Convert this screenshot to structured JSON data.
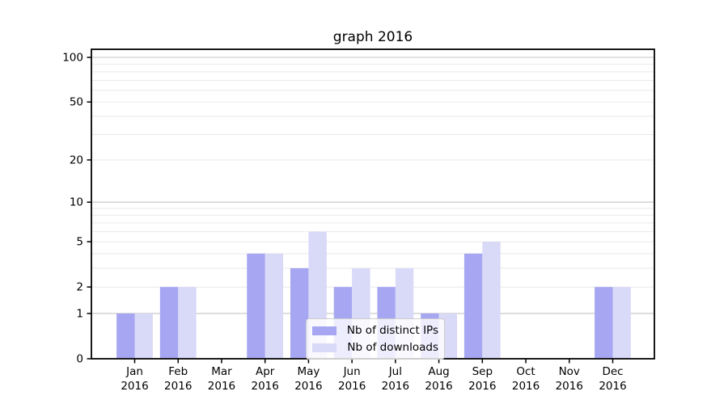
{
  "chart_data": {
    "type": "bar",
    "title": "graph 2016",
    "categories": [
      "Jan",
      "Feb",
      "Mar",
      "Apr",
      "May",
      "Jun",
      "Jul",
      "Aug",
      "Sep",
      "Oct",
      "Nov",
      "Dec"
    ],
    "category_year": "2016",
    "series": [
      {
        "name": "Nb of distinct IPs",
        "color": "#a6a6f2",
        "values": [
          1,
          2,
          0,
          4,
          3,
          2,
          2,
          1,
          4,
          0,
          0,
          2
        ]
      },
      {
        "name": "Nb of downloads",
        "color": "#d9d9f8",
        "values": [
          1,
          2,
          0,
          4,
          6,
          3,
          3,
          1,
          5,
          0,
          0,
          2
        ]
      }
    ],
    "y_ticks": [
      0,
      1,
      2,
      5,
      10,
      20,
      50,
      100
    ],
    "y_scale": "log10(1+v)",
    "ylim": [
      0,
      113
    ],
    "grid": {
      "minor_values": [
        2,
        3,
        4,
        5,
        6,
        7,
        8,
        9,
        20,
        30,
        40,
        50,
        60,
        70,
        80,
        90
      ],
      "major_values": [
        1,
        10,
        100
      ],
      "minor_color": "#e9e9e9",
      "major_color": "#c5c5c5"
    },
    "legend_position": "lower center",
    "axis_color": "#000000",
    "background_color": "#ffffff"
  }
}
